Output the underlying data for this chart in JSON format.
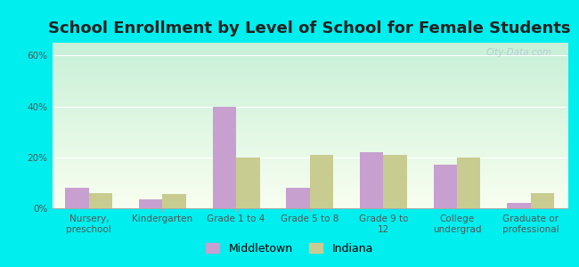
{
  "title": "School Enrollment by Level of School for Female Students",
  "categories": [
    "Nursery,\npreschool",
    "Kindergarten",
    "Grade 1 to 4",
    "Grade 5 to 8",
    "Grade 9 to\n12",
    "College\nundergrad",
    "Graduate or\nprofessional"
  ],
  "middletown": [
    8,
    3.5,
    40,
    8,
    22,
    17,
    2
  ],
  "indiana": [
    6,
    5.5,
    20,
    21,
    21,
    20,
    6
  ],
  "middletown_color": "#c8a0d0",
  "indiana_color": "#c8cc90",
  "background_color": "#00eeee",
  "plot_bg_top_left": "#c8f0d8",
  "plot_bg_bottom_right": "#f8fef0",
  "title_color": "#222222",
  "ylabel_ticks": [
    "0%",
    "20%",
    "40%",
    "60%"
  ],
  "yticks": [
    0,
    20,
    40,
    60
  ],
  "ylim": [
    0,
    65
  ],
  "bar_width": 0.32,
  "title_fontsize": 13,
  "tick_fontsize": 7.5,
  "legend_fontsize": 9,
  "watermark_text": "City-Data.com"
}
